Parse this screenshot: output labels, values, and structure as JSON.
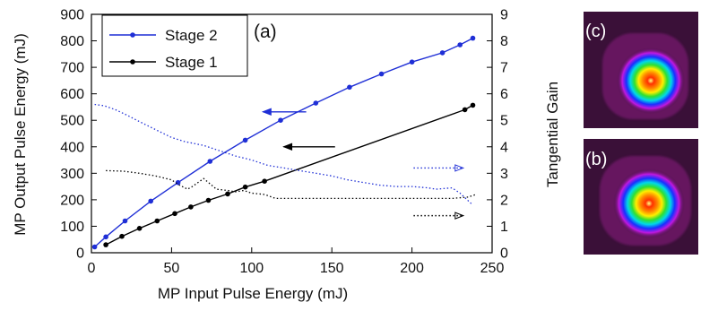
{
  "figure": {
    "panel_a_label": "(a)",
    "panel_b_label": "(b)",
    "panel_c_label": "(c)"
  },
  "colors": {
    "stage2": "#1f2fd6",
    "stage1": "#000000",
    "beam_background": "#3a1038"
  },
  "chart_data": {
    "type": "line",
    "xlabel": "MP Input Pulse Energy (mJ)",
    "ylabel": "MP Output Pulse Energy (mJ)",
    "y2label": "Tangential Gain",
    "xlim": [
      0,
      250
    ],
    "ylim": [
      0,
      900
    ],
    "y2lim": [
      0,
      9
    ],
    "xticks": [
      0,
      50,
      100,
      150,
      200,
      250
    ],
    "yticks": [
      0,
      100,
      200,
      300,
      400,
      500,
      600,
      700,
      800,
      900
    ],
    "y2ticks": [
      0,
      1,
      2,
      3,
      4,
      5,
      6,
      7,
      8,
      9
    ],
    "grid": false,
    "legend_position": "top-left",
    "series": [
      {
        "name": "Stage 2",
        "axis": "left",
        "style": "line-markers",
        "color": "#1f2fd6",
        "x": [
          2,
          9,
          21,
          37,
          54,
          74,
          96,
          118,
          140,
          161,
          181,
          200,
          219,
          230,
          238
        ],
        "y": [
          22,
          60,
          120,
          195,
          265,
          345,
          425,
          500,
          565,
          625,
          675,
          720,
          755,
          785,
          810
        ]
      },
      {
        "name": "Stage 1",
        "axis": "left",
        "style": "line-markers",
        "color": "#000000",
        "x": [
          9,
          19,
          30,
          41,
          52,
          62,
          73,
          85,
          96,
          108,
          233,
          238
        ],
        "y": [
          30,
          62,
          92,
          120,
          148,
          173,
          198,
          222,
          248,
          270,
          540,
          557
        ]
      },
      {
        "axis": "right",
        "style": "dotted",
        "color": "#1f2fd6",
        "x": [
          2,
          8,
          15,
          22,
          30,
          40,
          50,
          58,
          70,
          80,
          90,
          100,
          110,
          120,
          130,
          140,
          150,
          160,
          170,
          180,
          190,
          200,
          210,
          215,
          225,
          230,
          238
        ],
        "y": [
          5.6,
          5.55,
          5.4,
          5.2,
          4.95,
          4.65,
          4.35,
          4.2,
          4.05,
          3.85,
          3.65,
          3.5,
          3.3,
          3.2,
          3.1,
          3.0,
          2.9,
          2.75,
          2.65,
          2.55,
          2.5,
          2.5,
          2.45,
          2.4,
          2.45,
          2.25,
          1.8
        ]
      },
      {
        "axis": "right",
        "style": "dotted",
        "color": "#000000",
        "x": [
          9,
          20,
          30,
          40,
          50,
          55,
          60,
          63,
          70,
          78,
          85,
          90,
          95,
          100,
          108,
          115,
          130,
          150,
          170,
          190,
          210,
          225,
          235,
          240
        ],
        "y": [
          3.1,
          3.08,
          3.0,
          2.9,
          2.75,
          2.55,
          2.4,
          2.5,
          2.8,
          2.4,
          2.35,
          2.3,
          2.35,
          2.25,
          2.2,
          2.05,
          2.05,
          2.05,
          2.05,
          2.05,
          2.05,
          2.05,
          2.1,
          2.2
        ]
      }
    ],
    "annotations": [
      {
        "type": "arrow",
        "direction": "left",
        "color": "#1f2fd6",
        "style": "solid",
        "from": [
          134,
          532
        ],
        "to": [
          107,
          532
        ]
      },
      {
        "type": "arrow",
        "direction": "left",
        "color": "#000000",
        "style": "solid",
        "from": [
          152,
          400
        ],
        "to": [
          120,
          400
        ]
      },
      {
        "type": "arrow",
        "direction": "right",
        "color": "#1f2fd6",
        "style": "dotted",
        "from": [
          201,
          3.2
        ],
        "to": [
          232,
          3.2
        ]
      },
      {
        "type": "arrow",
        "direction": "right",
        "color": "#000000",
        "style": "dotted",
        "from": [
          201,
          1.4
        ],
        "to": [
          232,
          1.4
        ]
      }
    ]
  }
}
